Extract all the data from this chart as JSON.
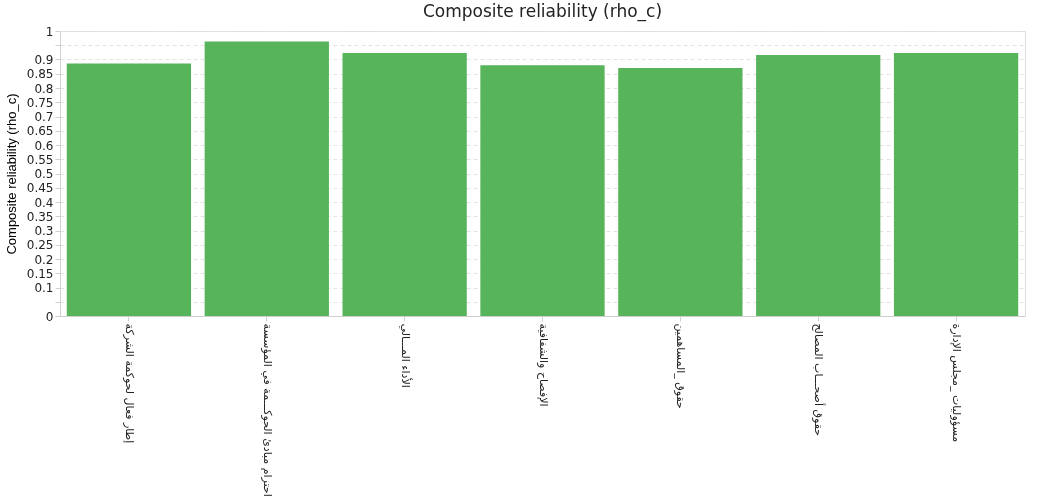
{
  "chart_data": {
    "type": "bar",
    "title": "Composite reliability (rho_c)",
    "ylabel": "Composite reliability (rho_c)",
    "categories": [
      "إطار فعال لحوكمة الشركة",
      "احترام مبادئ الحوكـــمة في المؤسسة",
      "الأداء المـــالي",
      "الإفصاح والشفافية",
      "حقوق _المساهمين",
      "حقوق أصحـــاب المصالح",
      "مسؤوليات _مجلس الإدارة"
    ],
    "values": [
      0.886,
      0.963,
      0.923,
      0.88,
      0.87,
      0.916,
      0.923
    ],
    "color": "#57b45a",
    "ylim": [
      0,
      1
    ],
    "yticks": [
      0,
      {
        "value": 0.05,
        "label": null
      },
      0.1,
      0.15,
      0.2,
      0.25,
      0.3,
      0.35,
      0.4,
      0.45,
      0.5,
      0.55,
      0.6,
      0.65,
      0.7,
      0.75,
      0.8,
      0.85,
      0.9,
      {
        "value": 0.95,
        "label": null
      },
      1
    ],
    "grid": "y"
  }
}
